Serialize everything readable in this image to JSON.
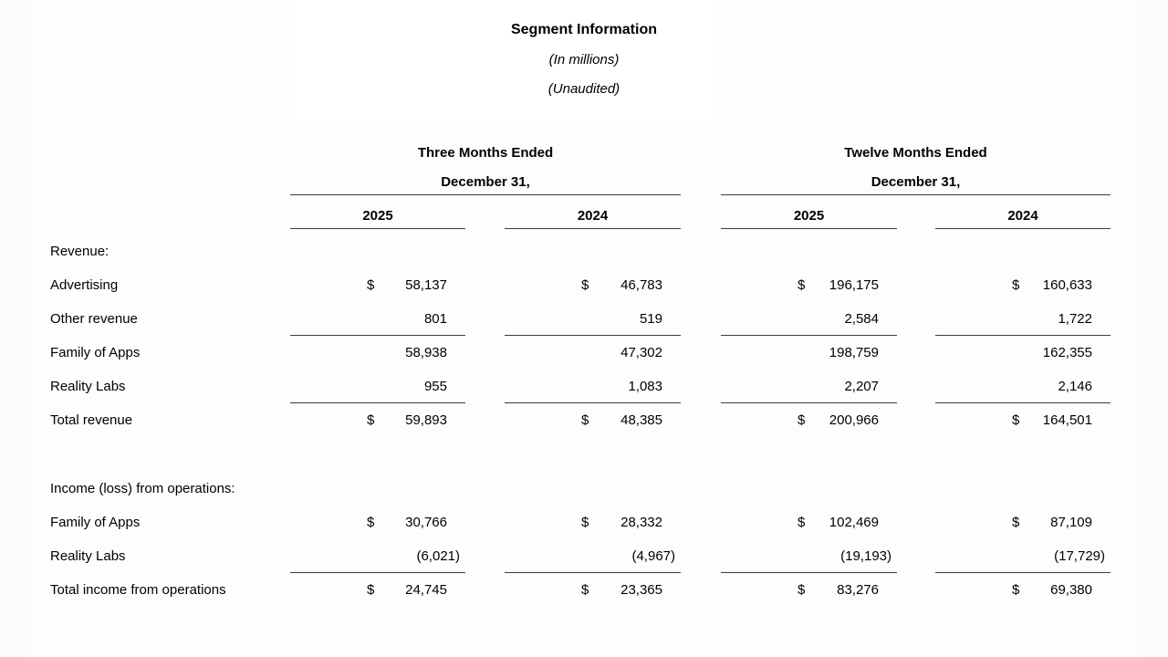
{
  "title": {
    "heading": "Segment Information",
    "units": "(In millions)",
    "audit_status": "(Unaudited)"
  },
  "colors": {
    "text": "#000000",
    "rule_line": "#3c3c3c",
    "page_background": "#fdfdfd"
  },
  "table": {
    "currency_symbol": "$",
    "groups": [
      {
        "period": "Three Months Ended",
        "date": "December 31,",
        "years": [
          "2025",
          "2024"
        ]
      },
      {
        "period": "Twelve Months Ended",
        "date": "December 31,",
        "years": [
          "2025",
          "2024"
        ]
      }
    ],
    "rows": [
      {
        "type": "section",
        "label": "Revenue:"
      },
      {
        "type": "data",
        "label": "Advertising",
        "dollar": true,
        "underline": false,
        "values": [
          "58,137",
          "46,783",
          "196,175",
          "160,633"
        ]
      },
      {
        "type": "data",
        "label": "Other revenue",
        "dollar": false,
        "underline": true,
        "values": [
          "801",
          "519",
          "2,584",
          "1,722"
        ]
      },
      {
        "type": "data",
        "label": "Family of Apps",
        "dollar": false,
        "underline": false,
        "values": [
          "58,938",
          "47,302",
          "198,759",
          "162,355"
        ]
      },
      {
        "type": "data",
        "label": "Reality Labs",
        "dollar": false,
        "underline": true,
        "values": [
          "955",
          "1,083",
          "2,207",
          "2,146"
        ]
      },
      {
        "type": "data",
        "label": "Total revenue",
        "dollar": true,
        "underline": false,
        "values": [
          "59,893",
          "48,385",
          "200,966",
          "164,501"
        ]
      },
      {
        "type": "spacer",
        "label": ""
      },
      {
        "type": "section",
        "label": "Income (loss) from operations:"
      },
      {
        "type": "data",
        "label": "Family of Apps",
        "dollar": true,
        "underline": false,
        "values": [
          "30,766",
          "28,332",
          "102,469",
          "87,109"
        ]
      },
      {
        "type": "data",
        "label": "Reality Labs",
        "dollar": false,
        "underline": true,
        "values": [
          "(6,021)",
          "(4,967)",
          "(19,193)",
          "(17,729)"
        ]
      },
      {
        "type": "data",
        "label": "Total income from operations",
        "dollar": true,
        "underline": false,
        "values": [
          "24,745",
          "23,365",
          "83,276",
          "69,380"
        ]
      }
    ]
  }
}
